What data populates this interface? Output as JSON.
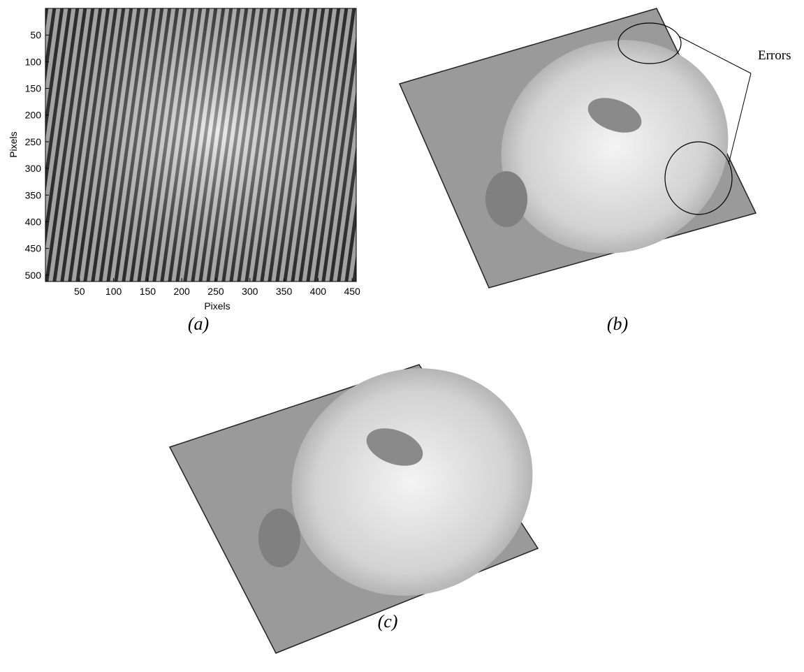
{
  "panel_a": {
    "x_label": "Pixels",
    "y_label": "Pixels",
    "xlim": [
      0,
      456
    ],
    "ylim": [
      0,
      512
    ],
    "xticks": [
      50,
      100,
      150,
      200,
      250,
      300,
      350,
      400,
      450
    ],
    "yticks": [
      50,
      100,
      150,
      200,
      250,
      300,
      350,
      400,
      450,
      500
    ],
    "caption": "(a)"
  },
  "panel_b": {
    "annotation": "Errors",
    "caption": "(b)"
  },
  "panel_c": {
    "caption": "(c)"
  }
}
